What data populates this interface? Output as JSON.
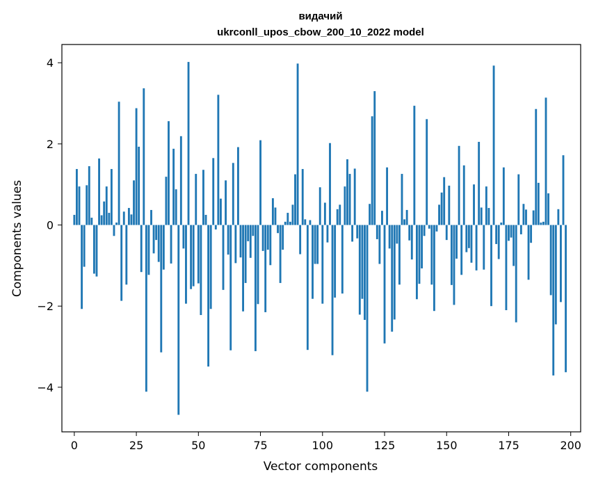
{
  "chart_data": {
    "type": "bar",
    "title_line1": "видачий",
    "title_line2": "ukrconll_upos_cbow_200_10_2022 model",
    "xlabel": "Vector components",
    "ylabel": "Components values",
    "xlim": [
      -5,
      204
    ],
    "ylim": [
      -5.1,
      4.45
    ],
    "xticks": [
      {
        "value": 0,
        "label": "0"
      },
      {
        "value": 25,
        "label": "25"
      },
      {
        "value": 50,
        "label": "50"
      },
      {
        "value": 75,
        "label": "75"
      },
      {
        "value": 100,
        "label": "100"
      },
      {
        "value": 125,
        "label": "125"
      },
      {
        "value": 150,
        "label": "150"
      },
      {
        "value": 175,
        "label": "175"
      },
      {
        "value": 200,
        "label": "200"
      }
    ],
    "yticks": [
      {
        "value": 4,
        "label": "4"
      },
      {
        "value": 2,
        "label": "2"
      },
      {
        "value": 0,
        "label": "0"
      },
      {
        "value": -2,
        "label": "−2"
      },
      {
        "value": -4,
        "label": "−4"
      }
    ],
    "bar_color": "#1f77b4",
    "grid": false,
    "values": [
      0.25,
      1.38,
      0.95,
      -2.07,
      -1.03,
      0.98,
      1.45,
      0.18,
      -1.2,
      -1.27,
      1.64,
      0.24,
      0.58,
      0.95,
      0.3,
      1.38,
      -0.27,
      0.06,
      3.04,
      -1.87,
      0.33,
      -1.47,
      0.42,
      0.26,
      1.1,
      2.88,
      1.93,
      -1.16,
      3.37,
      -4.11,
      -1.23,
      0.37,
      -0.7,
      -0.37,
      -0.91,
      -3.14,
      -1.1,
      1.19,
      2.56,
      -0.95,
      1.88,
      0.88,
      -4.68,
      2.19,
      -0.58,
      -1.94,
      4.02,
      -1.58,
      -1.51,
      1.26,
      -1.44,
      -2.22,
      1.36,
      0.25,
      -3.49,
      -2.07,
      1.65,
      -0.11,
      3.21,
      0.65,
      -1.6,
      1.1,
      -0.73,
      -3.09,
      1.53,
      -0.94,
      1.92,
      -0.8,
      -2.13,
      -1.43,
      -0.4,
      -0.81,
      -0.27,
      -3.11,
      -1.95,
      2.09,
      -0.64,
      -2.15,
      -0.61,
      -0.99,
      0.66,
      0.43,
      -0.2,
      -1.43,
      -0.61,
      0.08,
      0.3,
      0.08,
      0.5,
      1.25,
      3.98,
      -0.72,
      1.38,
      0.14,
      -3.08,
      0.12,
      -1.82,
      -0.96,
      -0.96,
      0.93,
      -1.94,
      0.55,
      -0.43,
      2.02,
      -3.21,
      -1.79,
      0.39,
      0.5,
      -1.69,
      0.95,
      1.62,
      1.26,
      -0.41,
      1.39,
      -0.33,
      -2.21,
      -1.82,
      -2.34,
      -4.11,
      0.52,
      2.68,
      3.3,
      -0.35,
      -0.96,
      0.35,
      -2.92,
      1.42,
      -0.58,
      -2.63,
      -2.33,
      -0.46,
      -1.47,
      1.26,
      0.14,
      0.37,
      -0.38,
      -0.85,
      2.94,
      -1.83,
      -1.45,
      -1.07,
      -0.27,
      2.61,
      -0.09,
      -1.47,
      -2.12,
      -0.16,
      0.5,
      0.8,
      1.18,
      -0.37,
      0.97,
      -1.48,
      -1.97,
      -0.83,
      1.95,
      -1.23,
      1.47,
      -0.67,
      -0.57,
      -0.93,
      1.0,
      -1.12,
      2.05,
      0.43,
      -1.1,
      0.95,
      0.42,
      -2.0,
      3.93,
      -0.47,
      -0.84,
      0.06,
      1.42,
      -2.1,
      -0.39,
      -0.31,
      -1.01,
      -2.4,
      1.25,
      -0.23,
      0.52,
      0.38,
      -1.35,
      -0.44,
      0.36,
      2.86,
      1.04,
      0.06,
      0.08,
      3.14,
      0.78,
      -1.73,
      -3.71,
      -2.45,
      0.39,
      -1.9,
      1.72,
      -3.63
    ]
  }
}
